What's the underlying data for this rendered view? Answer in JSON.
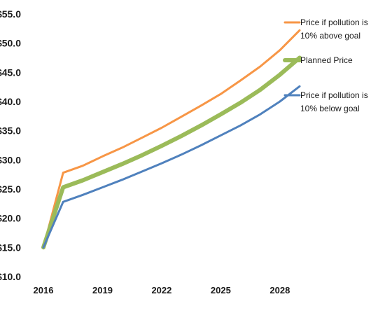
{
  "chart_data": {
    "type": "line",
    "title": "",
    "xlabel": "",
    "ylabel": "",
    "xlim": [
      2016,
      2029
    ],
    "ylim": [
      10,
      55
    ],
    "x_ticks": [
      2016,
      2019,
      2022,
      2025,
      2028
    ],
    "x_tick_labels": [
      "2016",
      "2019",
      "2022",
      "2025",
      "2028"
    ],
    "y_ticks": [
      10,
      15,
      20,
      25,
      30,
      35,
      40,
      45,
      50,
      55
    ],
    "y_tick_labels": [
      "$10.0",
      "$15.0",
      "$20.0",
      "$25.0",
      "$30.0",
      "$35.0",
      "$40.0",
      "$45.0",
      "$50.0",
      "$55.0"
    ],
    "grid": false,
    "legend_position": "right",
    "x": [
      2016,
      2017,
      2018,
      2019,
      2020,
      2021,
      2022,
      2023,
      2024,
      2025,
      2026,
      2027,
      2028,
      2029
    ],
    "series": [
      {
        "name": "Price if pollution is 10% above goal",
        "color": "#f79646",
        "values": [
          15.0,
          27.8,
          29.0,
          30.6,
          32.1,
          33.8,
          35.5,
          37.4,
          39.3,
          41.3,
          43.6,
          46.0,
          48.8,
          52.2
        ]
      },
      {
        "name": "Planned Price",
        "color": "#9bbb59",
        "values": [
          15.0,
          25.3,
          26.5,
          27.9,
          29.3,
          30.8,
          32.4,
          34.1,
          35.9,
          37.8,
          39.8,
          42.0,
          44.6,
          47.5
        ]
      },
      {
        "name": "Price if pollution is 10% below goal",
        "color": "#4f81bd",
        "values": [
          15.0,
          22.8,
          24.0,
          25.3,
          26.6,
          28.0,
          29.4,
          30.9,
          32.5,
          34.2,
          35.9,
          37.8,
          40.0,
          42.6
        ]
      }
    ]
  },
  "legend": {
    "items": [
      {
        "line1": "Price if pollution is",
        "line2": "10% above goal",
        "color": "#f79646"
      },
      {
        "line1": "Planned Price",
        "line2": "",
        "color": "#9bbb59"
      },
      {
        "line1": "Price if pollution is",
        "line2": "10% below goal",
        "color": "#4f81bd"
      }
    ]
  }
}
